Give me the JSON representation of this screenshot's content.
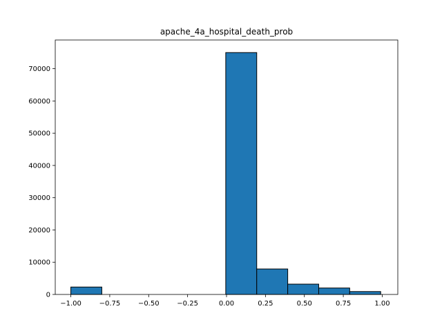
{
  "chart_data": {
    "type": "bar",
    "title": "apache_4a_hospital_death_prob",
    "xlabel": "",
    "ylabel": "",
    "xlim": [
      -1.1,
      1.1
    ],
    "ylim": [
      0,
      78900
    ],
    "x_ticks": [
      -1.0,
      -0.75,
      -0.5,
      -0.25,
      0.0,
      0.25,
      0.5,
      0.75,
      1.0
    ],
    "x_tick_labels": [
      "−1.00",
      "−0.75",
      "−0.50",
      "−0.25",
      "0.00",
      "0.25",
      "0.50",
      "0.75",
      "1.00"
    ],
    "y_ticks": [
      0,
      10000,
      20000,
      30000,
      40000,
      50000,
      60000,
      70000
    ],
    "y_tick_labels": [
      "0",
      "10000",
      "20000",
      "30000",
      "40000",
      "50000",
      "60000",
      "70000"
    ],
    "bins": [
      {
        "x0": -1.0,
        "x1": -0.801,
        "count": 2300
      },
      {
        "x0": -0.801,
        "x1": -0.602,
        "count": 0
      },
      {
        "x0": -0.602,
        "x1": -0.403,
        "count": 0
      },
      {
        "x0": -0.403,
        "x1": -0.204,
        "count": 0
      },
      {
        "x0": -0.204,
        "x1": -0.005,
        "count": 0
      },
      {
        "x0": -0.005,
        "x1": 0.194,
        "count": 75000
      },
      {
        "x0": 0.194,
        "x1": 0.393,
        "count": 7900
      },
      {
        "x0": 0.393,
        "x1": 0.592,
        "count": 3200
      },
      {
        "x0": 0.592,
        "x1": 0.791,
        "count": 2000
      },
      {
        "x0": 0.791,
        "x1": 0.99,
        "count": 900
      }
    ],
    "grid": false,
    "legend": "none",
    "bar_color": "#1f77b4",
    "edge_color": "#000000"
  }
}
